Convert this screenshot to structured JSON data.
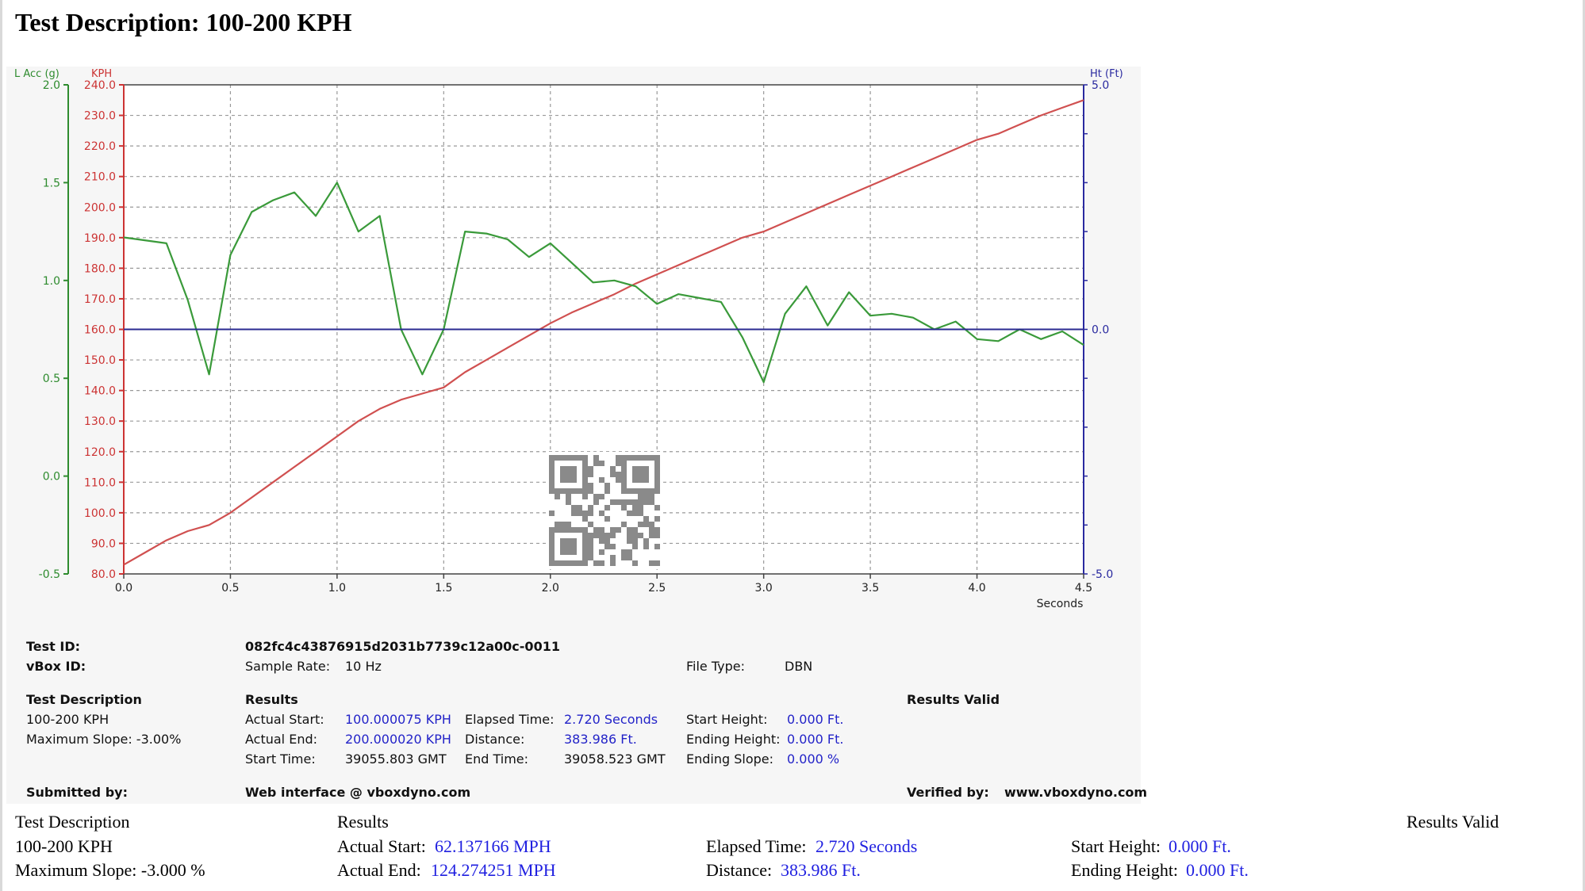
{
  "title": "Test Description: 100-200 KPH",
  "chart_data": {
    "type": "line",
    "x_axis": {
      "label": "Seconds",
      "min": 0.0,
      "max": 4.5,
      "ticks": [
        "0.0",
        "0.5",
        "1.0",
        "1.5",
        "2.0",
        "2.5",
        "3.0",
        "3.5",
        "4.0",
        "4.5"
      ]
    },
    "axes": {
      "lacc": {
        "label": "L Acc (g)",
        "min": -0.5,
        "max": 2.0,
        "ticks": [
          "2.0",
          "1.5",
          "1.0",
          "0.5",
          "0.0",
          "-0.5"
        ],
        "color": "#2e8b2e"
      },
      "kph": {
        "label": "KPH",
        "min": 80,
        "max": 240,
        "ticks": [
          "240.0",
          "230.0",
          "220.0",
          "210.0",
          "200.0",
          "190.0",
          "180.0",
          "170.0",
          "160.0",
          "150.0",
          "140.0",
          "130.0",
          "120.0",
          "110.0",
          "100.0",
          "90.0",
          "80.0"
        ],
        "color": "#cc3333"
      },
      "ht": {
        "label": "Ht (Ft)",
        "min": -5.0,
        "max": 5.0,
        "ticks": [
          "5.0",
          "0.0",
          "-5.0"
        ],
        "color": "#2a2aa0"
      }
    },
    "grid": true,
    "series": [
      {
        "axis": "kph",
        "color": "#d05050",
        "x": [
          0.0,
          0.1,
          0.2,
          0.3,
          0.4,
          0.5,
          0.6,
          0.7,
          0.8,
          0.9,
          1.0,
          1.1,
          1.2,
          1.3,
          1.4,
          1.5,
          1.6,
          1.7,
          1.8,
          1.9,
          2.0,
          2.1,
          2.2,
          2.3,
          2.4,
          2.5,
          2.6,
          2.7,
          2.8,
          2.9,
          3.0,
          3.1,
          3.2,
          3.3,
          3.4,
          3.5,
          3.6,
          3.7,
          3.8,
          3.9,
          4.0,
          4.1,
          4.2,
          4.3,
          4.4,
          4.5
        ],
        "values": [
          83,
          87,
          91,
          94,
          96,
          100,
          105,
          110,
          115,
          120,
          125,
          130,
          134,
          137,
          139,
          141,
          146,
          150,
          154,
          158,
          162,
          165.5,
          168.5,
          171.5,
          175,
          178,
          181,
          184,
          187,
          190,
          192,
          195,
          198,
          201,
          204,
          207,
          210,
          213,
          216,
          219,
          222,
          224,
          227,
          230,
          232.5,
          235
        ]
      },
      {
        "axis": "lacc",
        "color": "#3a9a3a",
        "x": [
          0.0,
          0.2,
          0.3,
          0.4,
          0.5,
          0.6,
          0.7,
          0.8,
          0.9,
          1.0,
          1.1,
          1.2,
          1.3,
          1.4,
          1.5,
          1.6,
          1.7,
          1.8,
          1.9,
          2.0,
          2.1,
          2.2,
          2.3,
          2.4,
          2.5,
          2.6,
          2.7,
          2.8,
          2.9,
          3.0,
          3.1,
          3.2,
          3.3,
          3.4,
          3.5,
          3.6,
          3.7,
          3.8,
          3.9,
          4.0,
          4.1,
          4.2,
          4.3,
          4.4,
          4.5
        ],
        "values": [
          1.22,
          1.19,
          0.9,
          0.52,
          1.13,
          1.35,
          1.41,
          1.45,
          1.33,
          1.5,
          1.25,
          1.33,
          0.75,
          0.52,
          0.75,
          1.25,
          1.24,
          1.21,
          1.12,
          1.19,
          1.09,
          0.99,
          1.0,
          0.97,
          0.88,
          0.93,
          0.91,
          0.89,
          0.71,
          0.48,
          0.83,
          0.97,
          0.77,
          0.94,
          0.82,
          0.83,
          0.81,
          0.75,
          0.79,
          0.7,
          0.69,
          0.75,
          0.7,
          0.74,
          0.67
        ]
      },
      {
        "axis": "ht",
        "color": "#2a2a90",
        "x": [
          0.0,
          4.5
        ],
        "values": [
          0.0,
          0.0
        ]
      }
    ]
  },
  "info": {
    "test_id_label": "Test ID:",
    "test_id": "082fc4c43876915d2031b7739c12a00c-0011",
    "vbox_id_label": "vBox ID:",
    "sample_rate_label": "Sample Rate:",
    "sample_rate": "10 Hz",
    "file_type_label": "File Type:",
    "file_type": "DBN",
    "test_desc_label": "Test Description",
    "test_desc": "100-200 KPH",
    "max_slope": "Maximum Slope:  -3.00%",
    "results_label": "Results",
    "results_valid": "Results Valid",
    "actual_start_label": "Actual Start:",
    "actual_start": "100.000075 KPH",
    "actual_end_label": "Actual End:",
    "actual_end": "200.000020 KPH",
    "start_time_label": "Start Time:",
    "start_time": "39055.803 GMT",
    "elapsed_label": "Elapsed Time:",
    "elapsed": "2.720 Seconds",
    "distance_label": "Distance:",
    "distance": "383.986 Ft.",
    "end_time_label": "End Time:",
    "end_time": "39058.523 GMT",
    "start_height_label": "Start Height:",
    "start_height": "0.000 Ft.",
    "ending_height_label": "Ending Height:",
    "ending_height": "0.000 Ft.",
    "ending_slope_label": "Ending Slope:",
    "ending_slope": "0.000 %",
    "submitted_label": "Submitted by:",
    "submitted": "Web interface @ vboxdyno.com",
    "verified_label": "Verified by:",
    "verified": "www.vboxdyno.com"
  },
  "summary": {
    "test_desc_label": "Test Description",
    "test_desc": "100-200 KPH",
    "max_slope": "Maximum Slope:  -3.000 %",
    "results_label": "Results",
    "results_valid": "Results Valid",
    "actual_start_label": "Actual Start:",
    "actual_start": "62.137166 MPH",
    "actual_end_label": "Actual End:",
    "actual_end": "124.274251 MPH",
    "elapsed_label": "Elapsed Time:",
    "elapsed": "2.720 Seconds",
    "distance_label": "Distance:",
    "distance": "383.986 Ft.",
    "start_height_label": "Start Height:",
    "start_height": "0.000 Ft.",
    "ending_height_label": "Ending Height:",
    "ending_height": "0.000 Ft."
  }
}
